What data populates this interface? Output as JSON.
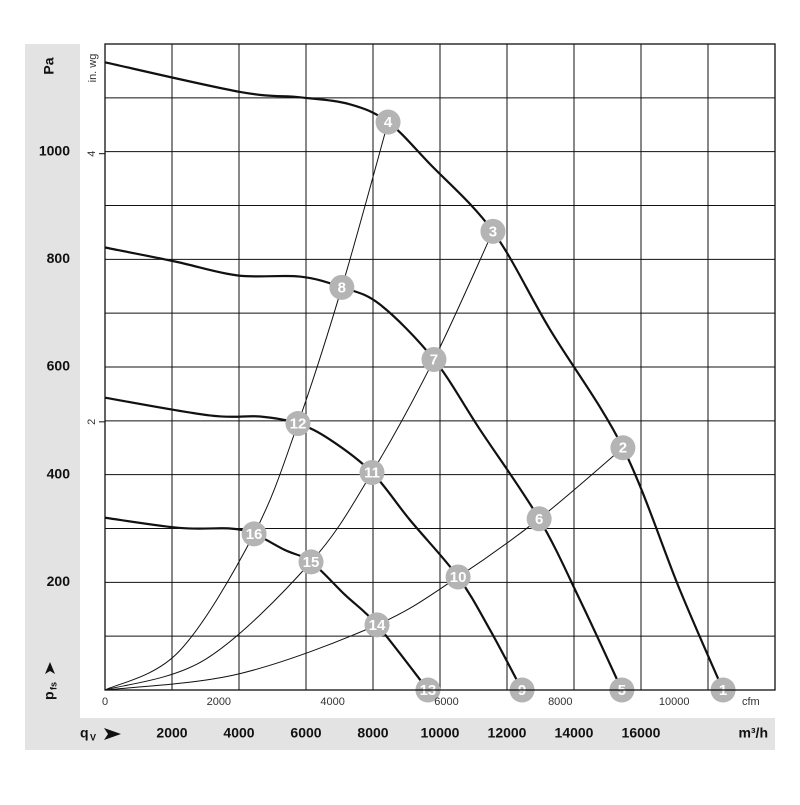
{
  "chart_data": {
    "type": "fan-curves",
    "y_label": "Pa",
    "y2_label": "in. wg",
    "y_quantity": "p",
    "y_quantity_sub": "fs",
    "x_quantity": "q",
    "x_quantity_sub": "V",
    "x_unit": "m³/h",
    "x2_unit": "cfm",
    "xlim": [
      0,
      20000
    ],
    "xticks": [
      2000,
      4000,
      6000,
      8000,
      10000,
      12000,
      14000,
      16000
    ],
    "x_gridlines": [
      0,
      2000,
      4000,
      6000,
      8000,
      10000,
      12000,
      14000,
      16000,
      18000,
      20000
    ],
    "ylim": [
      0,
      1200
    ],
    "yticks": [
      200,
      400,
      600,
      800,
      1000
    ],
    "y_gridlines": [
      0,
      100,
      200,
      300,
      400,
      500,
      600,
      700,
      800,
      900,
      1000,
      1100,
      1200
    ],
    "x2lim": [
      0,
      11772
    ],
    "x2ticks": [
      0,
      2000,
      4000,
      6000,
      8000,
      10000
    ],
    "y2lim": [
      0,
      4.818
    ],
    "y2ticks": [
      2,
      4
    ],
    "band_color": "#e3e3e3",
    "point_color": "#b4b4b4",
    "fan_curves": [
      {
        "x": [
          0,
          4030,
          5820,
          7310,
          8450,
          9700,
          11580,
          13280,
          15460,
          17160,
          18450
        ],
        "values": [
          1166,
          1111,
          1101,
          1088,
          1055,
          977,
          852,
          670,
          450,
          186,
          0
        ]
      },
      {
        "x": [
          0,
          2090,
          3970,
          5820,
          7070,
          8210,
          9820,
          11190,
          12960,
          14180,
          15430
        ],
        "values": [
          822,
          796,
          770,
          768,
          748,
          716,
          614,
          484,
          318,
          167,
          0
        ]
      },
      {
        "x": [
          0,
          3130,
          4630,
          5760,
          6720,
          7970,
          9100,
          10540,
          11490,
          12450
        ],
        "values": [
          543,
          510,
          508,
          495,
          465,
          404,
          316,
          210,
          112,
          0
        ]
      },
      {
        "x": [
          0,
          2240,
          3730,
          4450,
          5370,
          6150,
          7160,
          8120,
          9640
        ],
        "values": [
          320,
          301,
          300,
          290,
          260,
          238,
          177,
          121,
          0
        ]
      }
    ],
    "system_curves": [
      {
        "x": [
          0,
          2200,
          4450,
          5760,
          7070,
          8450
        ],
        "values": [
          0,
          71,
          290,
          495,
          748,
          1055
        ]
      },
      {
        "x": [
          0,
          3000,
          6150,
          7970,
          9820,
          11580
        ],
        "values": [
          0,
          57,
          238,
          404,
          614,
          852
        ]
      },
      {
        "x": [
          0,
          4000,
          8120,
          10540,
          12960,
          15460
        ],
        "values": [
          0,
          30,
          121,
          210,
          318,
          450
        ]
      }
    ],
    "points": [
      {
        "label": "1",
        "x": 18450,
        "y": 0
      },
      {
        "label": "2",
        "x": 15460,
        "y": 450
      },
      {
        "label": "3",
        "x": 11580,
        "y": 852
      },
      {
        "label": "4",
        "x": 8450,
        "y": 1055
      },
      {
        "label": "5",
        "x": 15430,
        "y": 0
      },
      {
        "label": "6",
        "x": 12960,
        "y": 318
      },
      {
        "label": "7",
        "x": 9820,
        "y": 614
      },
      {
        "label": "8",
        "x": 7070,
        "y": 748
      },
      {
        "label": "9",
        "x": 12450,
        "y": 0
      },
      {
        "label": "10",
        "x": 10540,
        "y": 210
      },
      {
        "label": "11",
        "x": 7970,
        "y": 404
      },
      {
        "label": "12",
        "x": 5760,
        "y": 495
      },
      {
        "label": "13",
        "x": 9640,
        "y": 0
      },
      {
        "label": "14",
        "x": 8120,
        "y": 121
      },
      {
        "label": "15",
        "x": 6150,
        "y": 238
      },
      {
        "label": "16",
        "x": 4450,
        "y": 290
      }
    ]
  }
}
